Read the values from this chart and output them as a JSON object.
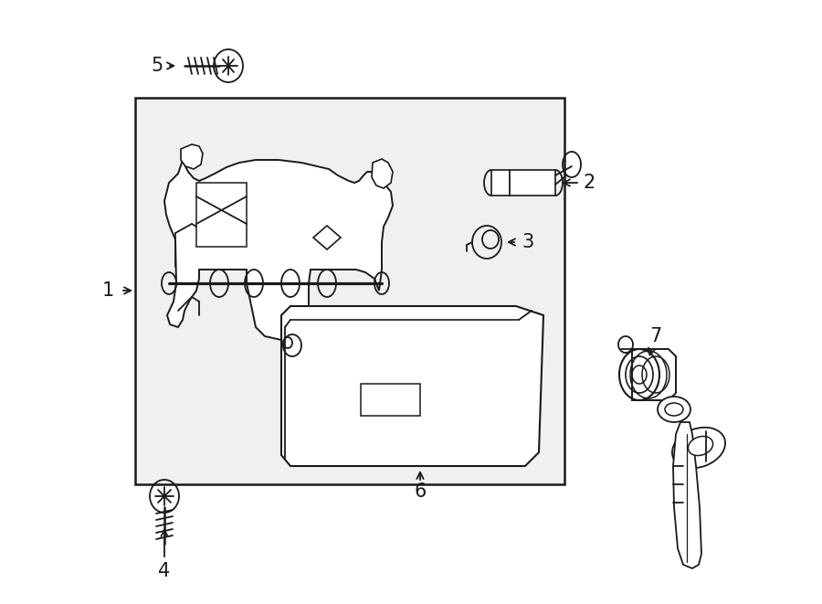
{
  "bg_color": "#ffffff",
  "line_color": "#1a1a1a",
  "fig_w": 9.0,
  "fig_h": 6.61,
  "dpi": 100,
  "lw": 1.3
}
